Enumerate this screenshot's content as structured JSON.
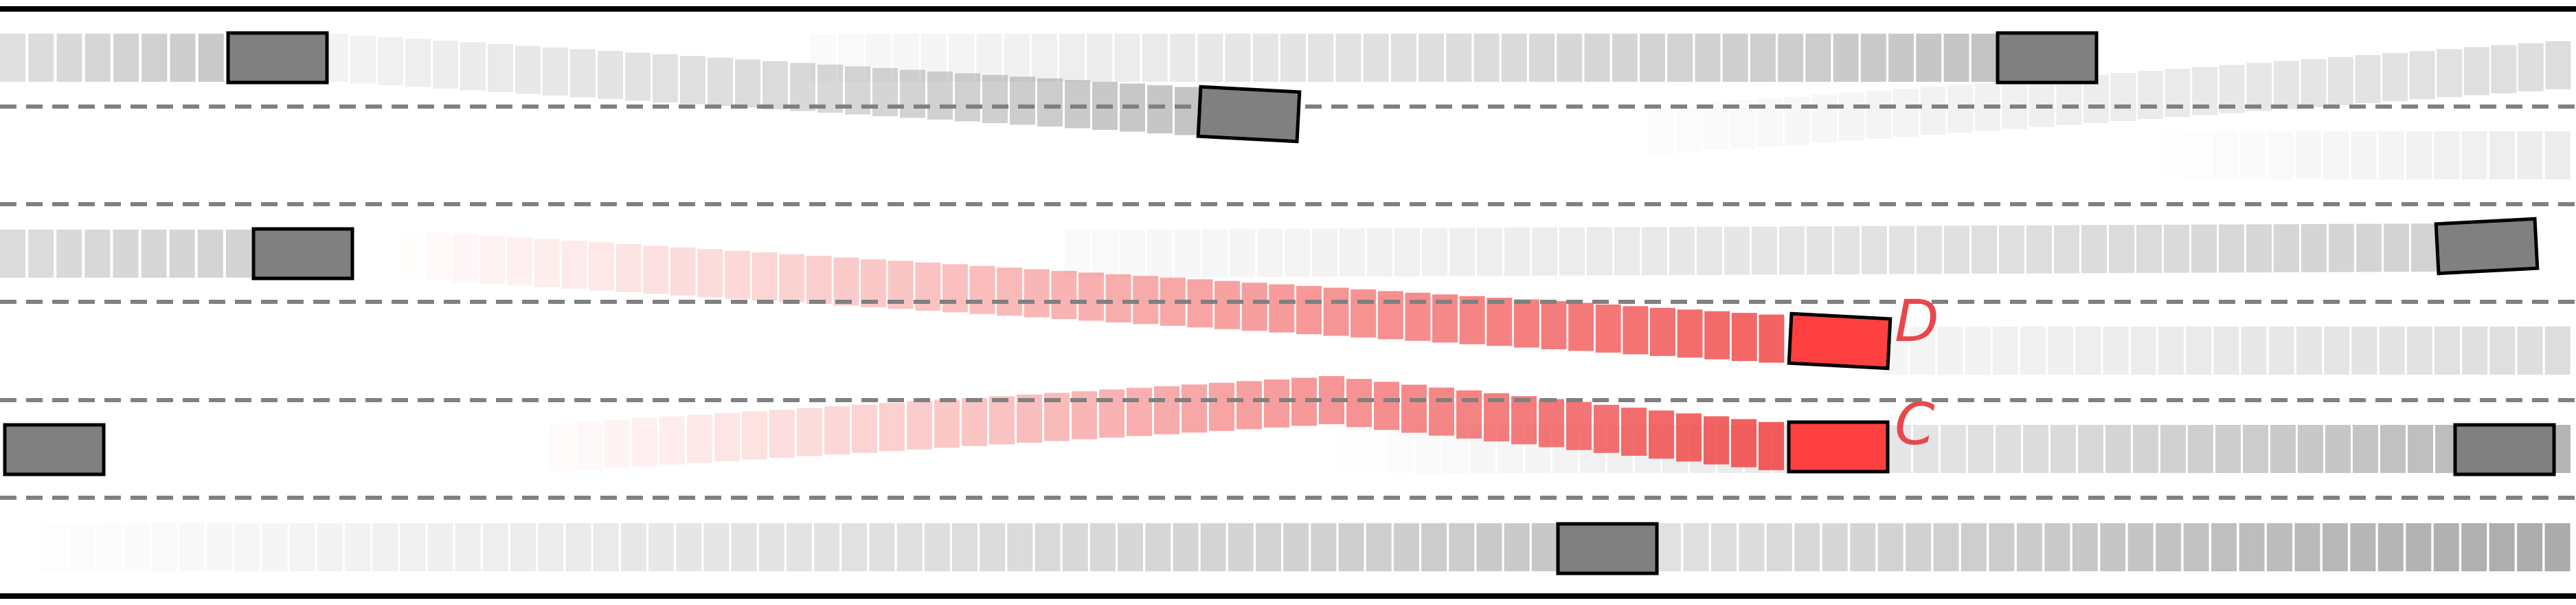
{
  "colors": {
    "road_edge": "#000000",
    "lane_divider": "#808080",
    "vehicle_fill": "#808080",
    "vehicle_stroke": "#000000",
    "ego_fill": "#ff4040",
    "trail_gray": "#9a9a9a",
    "trail_red": "#f04545",
    "label_color": "#e8474c"
  },
  "lanes": {
    "count": 6
  },
  "labeled_vehicles": [
    {
      "label": "D"
    },
    {
      "label": "C"
    }
  ]
}
